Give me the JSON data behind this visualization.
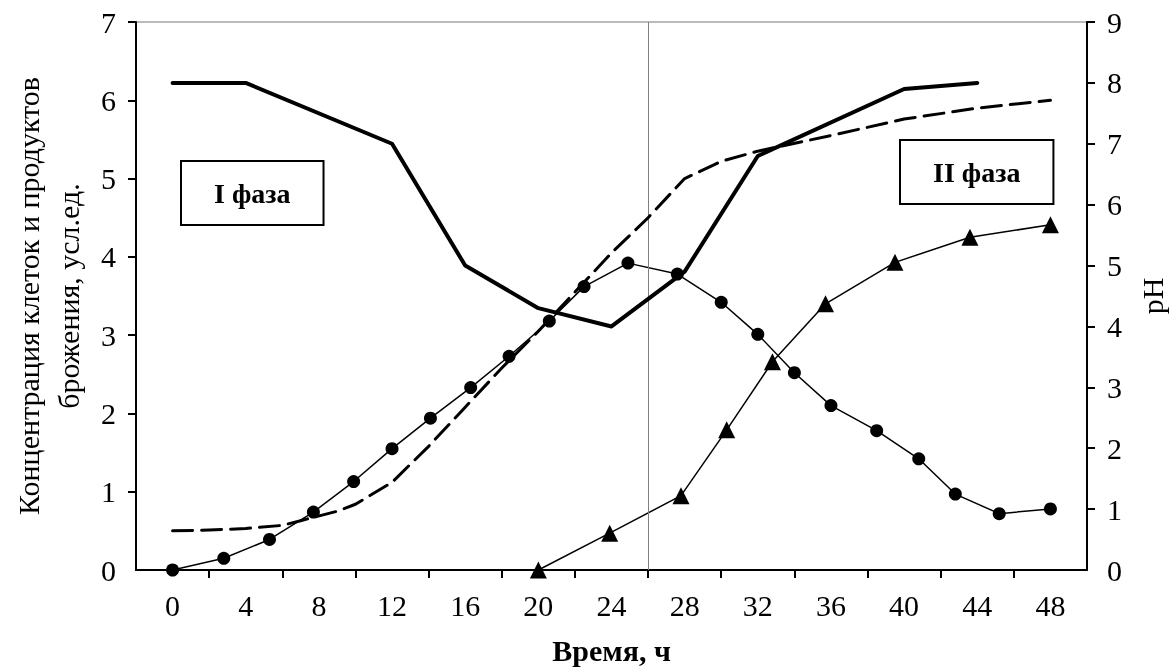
{
  "chart_data": {
    "type": "line",
    "xlabel": "Время, ч",
    "ylabel": "Концентрация клеток и продуктов брожения, усл.ед.",
    "y2label": "pH",
    "annotations": [
      "I фаза",
      "II фаза"
    ],
    "xlim": [
      -2,
      50
    ],
    "xticks": [
      0,
      {
        "value": 2,
        "label": null
      },
      4,
      {
        "value": 6,
        "label": null
      },
      8,
      {
        "value": 10,
        "label": null
      },
      12,
      {
        "value": 14,
        "label": null
      },
      16,
      {
        "value": 18,
        "label": null
      },
      20,
      {
        "value": 22,
        "label": null
      },
      24,
      {
        "value": 26,
        "label": null
      },
      28,
      {
        "value": 30,
        "label": null
      },
      32,
      {
        "value": 34,
        "label": null
      },
      36,
      {
        "value": 38,
        "label": null
      },
      40,
      {
        "value": 42,
        "label": null
      },
      44,
      {
        "value": 46,
        "label": null
      },
      48
    ],
    "ylim": [
      0,
      7
    ],
    "yticks": [
      0,
      1,
      2,
      3,
      4,
      5,
      6,
      7
    ],
    "y2lim": [
      0,
      9
    ],
    "y2ticks": [
      0,
      1,
      2,
      3,
      4,
      5,
      6,
      7,
      8,
      9
    ],
    "ref_lines": [
      {
        "axis": "x",
        "value": 26,
        "color": "#808080"
      }
    ],
    "series": [
      {
        "color": "#000000",
        "axis": "y2",
        "marker": "none",
        "line_style": "solid",
        "x": [
          0,
          4,
          12,
          16,
          20,
          24,
          28,
          32,
          40,
          44
        ],
        "values": [
          8.0,
          8.0,
          7.0,
          5.0,
          4.3,
          4.0,
          4.9,
          6.8,
          7.9,
          8.0
        ]
      },
      {
        "color": "#000000",
        "marker": "none",
        "line_style": "dashed",
        "x": [
          0,
          2,
          4,
          6,
          7,
          9,
          10,
          12,
          14,
          16,
          18,
          20,
          22,
          24,
          26,
          28,
          30,
          32,
          36,
          40,
          44,
          48
        ],
        "values": [
          0.5,
          0.51,
          0.53,
          0.57,
          0.63,
          0.75,
          0.84,
          1.12,
          1.58,
          2.08,
          2.58,
          3.05,
          3.55,
          4.05,
          4.5,
          5.0,
          5.22,
          5.35,
          5.55,
          5.76,
          5.9,
          6.0
        ]
      },
      {
        "color": "#000000",
        "marker": "circle",
        "line_style": "solid",
        "x": [
          0,
          2.8,
          5.3,
          7.7,
          9.9,
          12.0,
          14.1,
          16.3,
          18.4,
          20.6,
          22.5,
          24.9,
          27.6,
          30.0,
          32.0,
          34.0,
          36.0,
          38.5,
          40.8,
          42.8,
          45.2,
          48.0
        ],
        "values": [
          0,
          0.15,
          0.39,
          0.74,
          1.13,
          1.55,
          1.94,
          2.33,
          2.73,
          3.18,
          3.62,
          3.92,
          3.78,
          3.42,
          3.01,
          2.52,
          2.1,
          1.78,
          1.42,
          0.97,
          0.72,
          0.78
        ]
      },
      {
        "color": "#000000",
        "marker": "triangle",
        "line_style": "solid",
        "x": [
          20.0,
          23.9,
          27.8,
          30.3,
          32.8,
          35.7,
          39.5,
          43.6,
          48.0
        ],
        "values": [
          0,
          0.47,
          0.95,
          1.79,
          2.66,
          3.4,
          3.93,
          4.25,
          4.41
        ]
      }
    ]
  }
}
